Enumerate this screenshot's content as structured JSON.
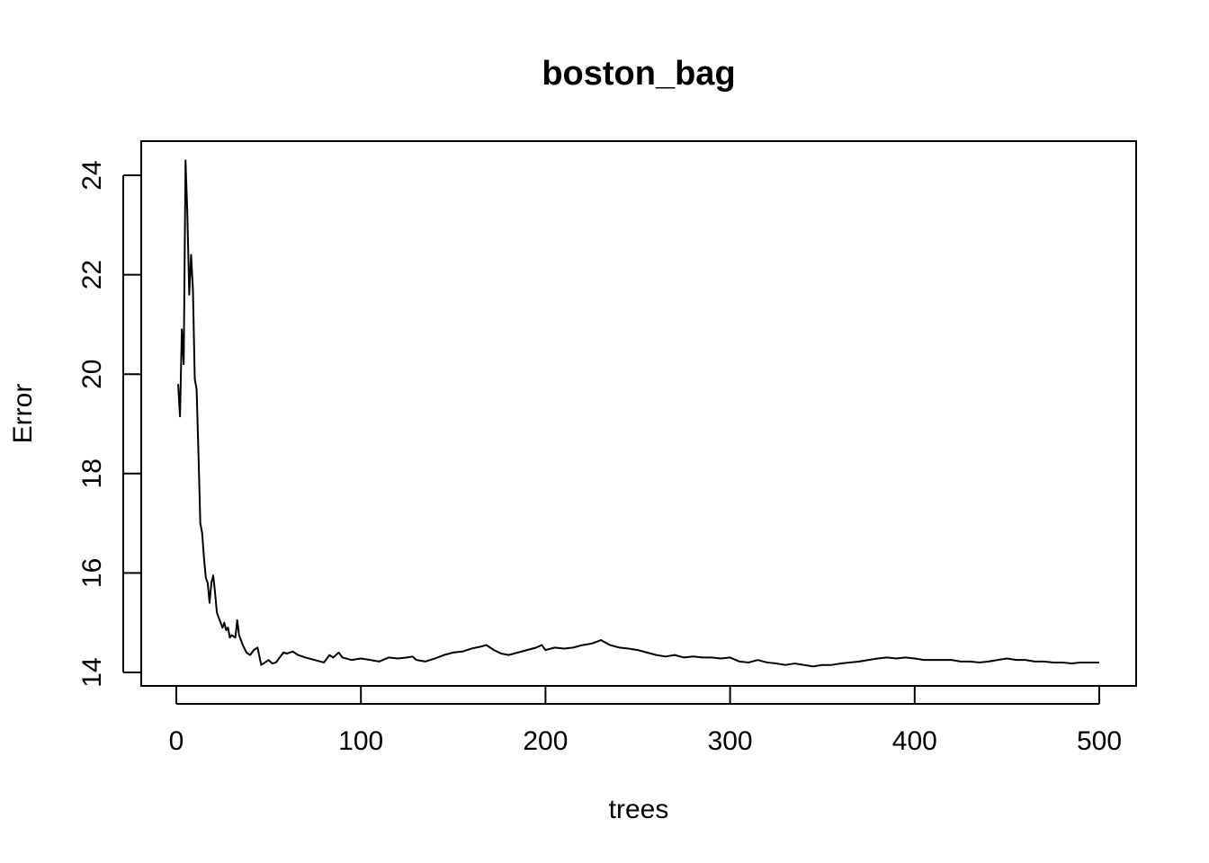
{
  "chart_data": {
    "type": "line",
    "title": "boston_bag",
    "xlabel": "trees",
    "ylabel": "Error",
    "xlim": [
      0,
      500
    ],
    "ylim": [
      14,
      24
    ],
    "xticks": [
      0,
      100,
      200,
      300,
      400,
      500
    ],
    "yticks": [
      14,
      16,
      18,
      20,
      22,
      24
    ],
    "grid": false,
    "series": [
      {
        "color": "#000000",
        "x": [
          1,
          2,
          3,
          4,
          5,
          6,
          7,
          8,
          9,
          10,
          11,
          12,
          13,
          14,
          15,
          16,
          17,
          18,
          19,
          20,
          21,
          22,
          23,
          24,
          25,
          26,
          27,
          28,
          29,
          30,
          32,
          33,
          34,
          36,
          38,
          40,
          42,
          44,
          46,
          48,
          50,
          52,
          54,
          56,
          58,
          60,
          63,
          66,
          70,
          75,
          80,
          83,
          85,
          88,
          90,
          95,
          100,
          105,
          110,
          115,
          120,
          125,
          128,
          130,
          135,
          140,
          145,
          150,
          155,
          160,
          165,
          168,
          172,
          176,
          180,
          185,
          190,
          195,
          198,
          200,
          205,
          210,
          215,
          220,
          225,
          228,
          230,
          235,
          240,
          245,
          250,
          255,
          260,
          265,
          270,
          275,
          280,
          285,
          290,
          295,
          300,
          305,
          310,
          315,
          320,
          325,
          330,
          335,
          340,
          345,
          350,
          355,
          360,
          365,
          370,
          375,
          380,
          385,
          390,
          395,
          400,
          405,
          410,
          415,
          420,
          425,
          430,
          435,
          440,
          445,
          450,
          455,
          460,
          465,
          470,
          475,
          480,
          485,
          490,
          495,
          500
        ],
        "values": [
          19.8,
          19.15,
          20.9,
          20.2,
          24.3,
          23.2,
          21.6,
          22.4,
          21.7,
          19.9,
          19.7,
          18.4,
          17.0,
          16.8,
          16.3,
          15.9,
          15.8,
          15.4,
          15.8,
          15.95,
          15.6,
          15.2,
          15.1,
          15.0,
          14.9,
          15.0,
          14.85,
          14.9,
          14.7,
          14.75,
          14.7,
          15.05,
          14.75,
          14.55,
          14.4,
          14.35,
          14.45,
          14.5,
          14.15,
          14.2,
          14.25,
          14.18,
          14.2,
          14.3,
          14.4,
          14.38,
          14.42,
          14.35,
          14.3,
          14.25,
          14.2,
          14.35,
          14.3,
          14.4,
          14.3,
          14.25,
          14.28,
          14.25,
          14.22,
          14.3,
          14.28,
          14.3,
          14.32,
          14.25,
          14.22,
          14.28,
          14.35,
          14.4,
          14.42,
          14.48,
          14.52,
          14.55,
          14.45,
          14.38,
          14.35,
          14.4,
          14.45,
          14.5,
          14.55,
          14.45,
          14.5,
          14.48,
          14.5,
          14.55,
          14.58,
          14.62,
          14.65,
          14.55,
          14.5,
          14.48,
          14.45,
          14.4,
          14.35,
          14.32,
          14.35,
          14.3,
          14.32,
          14.3,
          14.3,
          14.28,
          14.3,
          14.22,
          14.2,
          14.25,
          14.2,
          14.18,
          14.15,
          14.18,
          14.15,
          14.12,
          14.15,
          14.15,
          14.18,
          14.2,
          14.22,
          14.25,
          14.28,
          14.3,
          14.28,
          14.3,
          14.28,
          14.25,
          14.25,
          14.25,
          14.25,
          14.22,
          14.22,
          14.2,
          14.22,
          14.25,
          14.28,
          14.25,
          14.25,
          14.22,
          14.22,
          14.2,
          14.2,
          14.18,
          14.2,
          14.2,
          14.2
        ]
      }
    ]
  }
}
